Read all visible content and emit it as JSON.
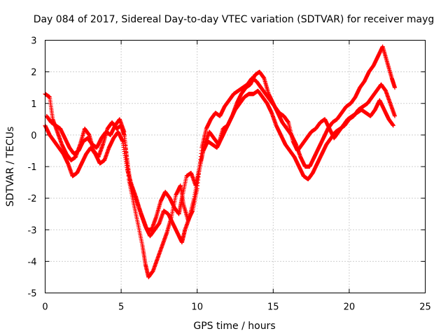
{
  "chart_data": {
    "type": "scatter",
    "title": "Day 084 of 2017, Sidereal Day-to-day VTEC variation (SDTVAR) for receiver mayg",
    "xlabel": "GPS time / hours",
    "ylabel": "SDTVAR / TECUs",
    "xlim": [
      0,
      25
    ],
    "ylim": [
      -5,
      3
    ],
    "x_ticks": [
      "0",
      "5",
      "10",
      "15",
      "20",
      "25"
    ],
    "y_ticks": [
      "-5",
      "-4",
      "-3",
      "-2",
      "-1",
      "0",
      "1",
      "2",
      "3"
    ],
    "grid": true,
    "marker": "+",
    "color": "#ff0000",
    "series": [
      {
        "points": [
          [
            0.0,
            1.3
          ],
          [
            0.3,
            1.2
          ],
          [
            0.5,
            0.5
          ],
          [
            0.8,
            0.1
          ],
          [
            1.1,
            -0.3
          ],
          [
            1.4,
            -0.6
          ],
          [
            1.7,
            -0.8
          ],
          [
            2.0,
            -0.7
          ],
          [
            2.3,
            -0.3
          ],
          [
            2.6,
            0.2
          ],
          [
            2.9,
            0.0
          ],
          [
            3.2,
            -0.5
          ],
          [
            3.5,
            -0.7
          ],
          [
            3.8,
            -0.3
          ],
          [
            4.1,
            0.2
          ],
          [
            4.4,
            0.4
          ],
          [
            4.7,
            0.2
          ],
          [
            5.0,
            0.3
          ],
          [
            5.2,
            0.0
          ],
          [
            5.4,
            -0.8
          ],
          [
            5.6,
            -1.5
          ],
          [
            5.8,
            -1.8
          ],
          [
            6.1,
            -2.2
          ],
          [
            6.4,
            -2.6
          ],
          [
            6.7,
            -3.0
          ],
          [
            7.0,
            -3.0
          ],
          [
            7.3,
            -2.6
          ],
          [
            7.6,
            -2.1
          ],
          [
            7.9,
            -1.8
          ],
          [
            8.2,
            -2.0
          ],
          [
            8.5,
            -2.3
          ],
          [
            8.8,
            -2.5
          ],
          [
            9.0,
            -2.0
          ],
          [
            9.3,
            -1.3
          ],
          [
            9.6,
            -1.2
          ],
          [
            9.9,
            -1.6
          ],
          [
            10.2,
            -0.9
          ],
          [
            10.5,
            -0.3
          ],
          [
            10.8,
            0.1
          ],
          [
            11.1,
            -0.1
          ],
          [
            11.4,
            -0.3
          ],
          [
            11.7,
            0.2
          ],
          [
            12.0,
            0.3
          ],
          [
            12.3,
            0.6
          ],
          [
            12.6,
            1.0
          ],
          [
            12.9,
            1.3
          ],
          [
            13.2,
            1.5
          ],
          [
            13.5,
            1.6
          ],
          [
            13.8,
            1.9
          ],
          [
            14.1,
            2.0
          ],
          [
            14.4,
            1.8
          ],
          [
            14.7,
            1.3
          ],
          [
            15.0,
            1.0
          ],
          [
            15.3,
            0.7
          ],
          [
            15.6,
            0.4
          ],
          [
            15.9,
            0.2
          ],
          [
            16.2,
            0.0
          ],
          [
            16.5,
            -0.3
          ],
          [
            16.8,
            -0.7
          ],
          [
            17.1,
            -1.0
          ],
          [
            17.4,
            -1.0
          ],
          [
            17.7,
            -0.7
          ],
          [
            18.0,
            -0.4
          ],
          [
            18.3,
            -0.1
          ],
          [
            18.6,
            0.2
          ],
          [
            18.9,
            0.4
          ],
          [
            19.2,
            0.5
          ],
          [
            19.5,
            0.7
          ],
          [
            19.8,
            0.9
          ],
          [
            20.1,
            1.0
          ],
          [
            20.4,
            1.2
          ],
          [
            20.7,
            1.5
          ],
          [
            21.0,
            1.7
          ],
          [
            21.3,
            2.0
          ],
          [
            21.6,
            2.2
          ],
          [
            21.9,
            2.5
          ],
          [
            22.2,
            2.8
          ],
          [
            22.5,
            2.3
          ],
          [
            22.8,
            1.8
          ],
          [
            23.0,
            1.5
          ]
        ]
      },
      {
        "points": [
          [
            0.0,
            0.3
          ],
          [
            0.3,
            0.0
          ],
          [
            0.6,
            -0.2
          ],
          [
            0.9,
            -0.4
          ],
          [
            1.2,
            -0.6
          ],
          [
            1.5,
            -0.9
          ],
          [
            1.8,
            -1.3
          ],
          [
            2.1,
            -1.2
          ],
          [
            2.4,
            -0.9
          ],
          [
            2.7,
            -0.6
          ],
          [
            3.0,
            -0.4
          ],
          [
            3.3,
            -0.6
          ],
          [
            3.6,
            -0.9
          ],
          [
            3.9,
            -0.8
          ],
          [
            4.2,
            -0.4
          ],
          [
            4.5,
            -0.1
          ],
          [
            4.8,
            0.1
          ],
          [
            5.1,
            -0.2
          ],
          [
            5.4,
            -1.1
          ],
          [
            5.7,
            -1.6
          ],
          [
            6.0,
            -2.0
          ],
          [
            6.3,
            -2.5
          ],
          [
            6.6,
            -2.9
          ],
          [
            6.9,
            -3.2
          ],
          [
            7.2,
            -3.0
          ],
          [
            7.5,
            -2.8
          ],
          [
            7.8,
            -2.4
          ],
          [
            8.1,
            -2.5
          ],
          [
            8.4,
            -2.8
          ],
          [
            8.7,
            -3.1
          ],
          [
            9.0,
            -3.4
          ],
          [
            9.2,
            -3.0
          ],
          [
            9.5,
            -2.6
          ],
          [
            9.8,
            -2.0
          ],
          [
            10.1,
            -1.2
          ],
          [
            10.4,
            -0.5
          ],
          [
            10.7,
            -0.2
          ],
          [
            11.0,
            -0.3
          ],
          [
            11.3,
            -0.4
          ],
          [
            11.6,
            -0.1
          ],
          [
            11.9,
            0.2
          ],
          [
            12.2,
            0.5
          ],
          [
            12.5,
            0.8
          ],
          [
            12.8,
            1.0
          ],
          [
            13.1,
            1.2
          ],
          [
            13.4,
            1.3
          ],
          [
            13.7,
            1.3
          ],
          [
            14.0,
            1.4
          ],
          [
            14.3,
            1.2
          ],
          [
            14.6,
            1.0
          ],
          [
            14.9,
            0.7
          ],
          [
            15.2,
            0.3
          ],
          [
            15.5,
            0.0
          ],
          [
            15.8,
            -0.3
          ],
          [
            16.1,
            -0.5
          ],
          [
            16.4,
            -0.7
          ],
          [
            16.7,
            -1.0
          ],
          [
            17.0,
            -1.3
          ],
          [
            17.3,
            -1.4
          ],
          [
            17.6,
            -1.2
          ],
          [
            17.9,
            -0.9
          ],
          [
            18.2,
            -0.6
          ],
          [
            18.5,
            -0.3
          ],
          [
            18.8,
            -0.1
          ],
          [
            19.1,
            0.1
          ],
          [
            19.4,
            0.2
          ],
          [
            19.7,
            0.3
          ],
          [
            20.0,
            0.5
          ],
          [
            20.3,
            0.6
          ],
          [
            20.6,
            0.8
          ],
          [
            20.9,
            0.9
          ],
          [
            21.2,
            1.0
          ],
          [
            21.5,
            1.2
          ],
          [
            21.8,
            1.4
          ],
          [
            22.1,
            1.6
          ],
          [
            22.4,
            1.4
          ],
          [
            22.7,
            1.0
          ],
          [
            23.0,
            0.6
          ]
        ]
      },
      {
        "points": [
          [
            0.1,
            0.6
          ],
          [
            0.4,
            0.4
          ],
          [
            0.7,
            0.3
          ],
          [
            1.0,
            0.2
          ],
          [
            1.3,
            -0.1
          ],
          [
            1.6,
            -0.4
          ],
          [
            1.9,
            -0.6
          ],
          [
            2.2,
            -0.5
          ],
          [
            2.5,
            -0.2
          ],
          [
            2.8,
            -0.1
          ],
          [
            3.1,
            -0.3
          ],
          [
            3.4,
            -0.4
          ],
          [
            3.7,
            -0.1
          ],
          [
            4.0,
            0.1
          ],
          [
            4.3,
            0.0
          ],
          [
            4.6,
            0.3
          ],
          [
            4.9,
            0.5
          ],
          [
            5.2,
            0.1
          ],
          [
            5.5,
            -1.4
          ],
          [
            5.8,
            -2.1
          ],
          [
            6.1,
            -2.8
          ],
          [
            6.4,
            -3.5
          ],
          [
            6.6,
            -4.1
          ],
          [
            6.8,
            -4.5
          ],
          [
            7.1,
            -4.3
          ],
          [
            7.4,
            -3.9
          ],
          [
            7.7,
            -3.5
          ],
          [
            8.0,
            -3.1
          ],
          [
            8.3,
            -2.6
          ],
          [
            8.6,
            -1.9
          ],
          [
            8.9,
            -1.6
          ],
          [
            9.1,
            -2.2
          ],
          [
            9.4,
            -2.7
          ],
          [
            9.7,
            -2.4
          ],
          [
            10.0,
            -1.7
          ],
          [
            10.3,
            -0.4
          ],
          [
            10.6,
            0.2
          ],
          [
            10.9,
            0.5
          ],
          [
            11.2,
            0.7
          ],
          [
            11.5,
            0.6
          ],
          [
            11.8,
            0.9
          ],
          [
            12.1,
            1.1
          ],
          [
            12.4,
            1.3
          ],
          [
            12.7,
            1.4
          ],
          [
            13.0,
            1.5
          ],
          [
            13.3,
            1.6
          ],
          [
            13.6,
            1.8
          ],
          [
            13.9,
            1.7
          ],
          [
            14.2,
            1.5
          ],
          [
            14.5,
            1.3
          ],
          [
            14.8,
            1.1
          ],
          [
            15.1,
            0.9
          ],
          [
            15.4,
            0.7
          ],
          [
            15.7,
            0.6
          ],
          [
            16.0,
            0.4
          ],
          [
            16.3,
            -0.2
          ],
          [
            16.6,
            -0.5
          ],
          [
            16.9,
            -0.3
          ],
          [
            17.2,
            -0.1
          ],
          [
            17.5,
            0.1
          ],
          [
            17.8,
            0.2
          ],
          [
            18.1,
            0.4
          ],
          [
            18.4,
            0.5
          ],
          [
            18.7,
            0.2
          ],
          [
            19.0,
            -0.1
          ],
          [
            19.3,
            0.1
          ],
          [
            19.6,
            0.3
          ],
          [
            19.9,
            0.5
          ],
          [
            20.2,
            0.6
          ],
          [
            20.5,
            0.7
          ],
          [
            20.8,
            0.8
          ],
          [
            21.1,
            0.7
          ],
          [
            21.4,
            0.6
          ],
          [
            21.7,
            0.8
          ],
          [
            22.0,
            1.1
          ],
          [
            22.3,
            0.8
          ],
          [
            22.6,
            0.5
          ],
          [
            22.9,
            0.3
          ]
        ]
      }
    ]
  }
}
